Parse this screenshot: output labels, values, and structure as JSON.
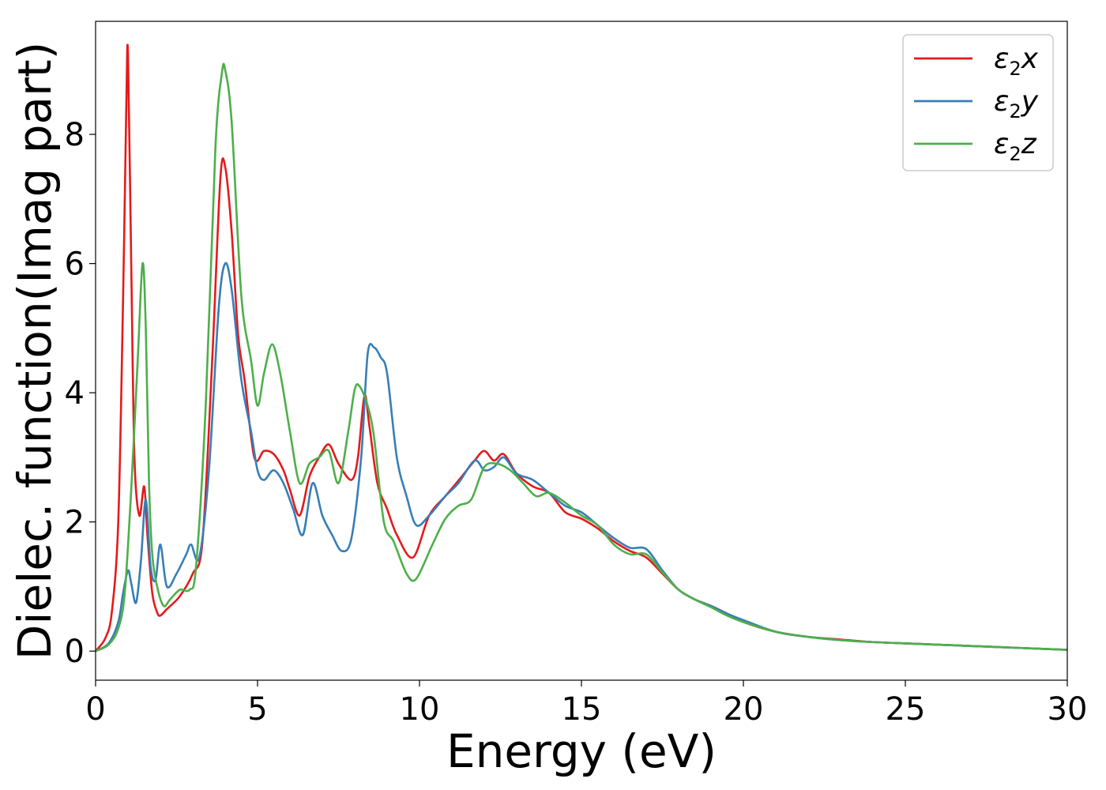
{
  "chart_data": {
    "type": "line",
    "xlabel": "Energy (eV)",
    "ylabel": "Dielec. function(Imag part)",
    "xlim": [
      0,
      30
    ],
    "ylim": [
      -0.45,
      9.75
    ],
    "xticks": [
      0,
      5,
      10,
      15,
      20,
      25,
      30
    ],
    "yticks": [
      0,
      2,
      4,
      6,
      8
    ],
    "grid": false,
    "legend_position": "top-right",
    "series": [
      {
        "name": "ε2x",
        "symbol": "ε",
        "subscript": "2",
        "axis": "x",
        "color": "#e41a1c",
        "x": [
          0,
          0.3,
          0.5,
          0.7,
          0.85,
          0.95,
          1.0,
          1.1,
          1.2,
          1.35,
          1.5,
          1.6,
          1.75,
          1.9,
          2.0,
          2.2,
          2.6,
          3.0,
          3.3,
          3.6,
          3.85,
          4.0,
          4.2,
          4.4,
          4.6,
          4.9,
          5.2,
          5.5,
          5.8,
          6.0,
          6.3,
          6.6,
          6.9,
          7.2,
          7.5,
          7.9,
          8.1,
          8.3,
          8.45,
          8.7,
          9.0,
          9.3,
          9.8,
          10.3,
          10.8,
          11.3,
          11.7,
          12.0,
          12.3,
          12.6,
          13.0,
          13.5,
          14.0,
          14.5,
          15.0,
          15.5,
          16.0,
          16.5,
          17.0,
          17.5,
          18.0,
          18.5,
          19.0,
          19.5,
          20.0,
          21.0,
          22.0,
          23.0,
          24.0,
          25.0,
          26.0,
          27.0,
          28.0,
          29.0,
          30.0
        ],
        "values": [
          0.0,
          0.2,
          0.6,
          2.0,
          5.5,
          8.5,
          9.25,
          6.0,
          3.0,
          2.1,
          2.55,
          1.8,
          0.9,
          0.6,
          0.55,
          0.65,
          0.85,
          1.2,
          1.7,
          4.5,
          7.3,
          7.5,
          6.5,
          4.9,
          4.2,
          3.0,
          3.1,
          3.05,
          2.8,
          2.5,
          2.1,
          2.7,
          3.0,
          3.2,
          2.9,
          2.65,
          3.0,
          3.95,
          3.5,
          2.6,
          2.2,
          1.8,
          1.45,
          2.1,
          2.4,
          2.7,
          2.95,
          3.1,
          2.95,
          3.05,
          2.75,
          2.55,
          2.45,
          2.15,
          2.05,
          1.9,
          1.7,
          1.55,
          1.45,
          1.2,
          0.95,
          0.8,
          0.7,
          0.58,
          0.45,
          0.3,
          0.22,
          0.18,
          0.14,
          0.12,
          0.1,
          0.08,
          0.06,
          0.04,
          0.02
        ]
      },
      {
        "name": "ε2y",
        "symbol": "ε",
        "subscript": "2",
        "axis": "y",
        "color": "#377eb8",
        "x": [
          0,
          0.4,
          0.7,
          0.85,
          1.0,
          1.1,
          1.25,
          1.4,
          1.55,
          1.7,
          1.85,
          2.0,
          2.2,
          2.5,
          2.8,
          2.95,
          3.2,
          3.5,
          3.8,
          4.0,
          4.2,
          4.5,
          4.8,
          5.0,
          5.2,
          5.5,
          5.8,
          6.1,
          6.4,
          6.7,
          7.0,
          7.3,
          7.6,
          7.9,
          8.2,
          8.4,
          8.6,
          8.8,
          9.0,
          9.3,
          9.6,
          9.9,
          10.3,
          10.8,
          11.2,
          11.7,
          12.0,
          12.3,
          12.6,
          13.0,
          13.5,
          14.0,
          14.5,
          15.0,
          15.5,
          16.0,
          16.5,
          17.0,
          17.5,
          18.0,
          18.5,
          19.0,
          19.5,
          20.0,
          21.0,
          22.0,
          23.0,
          24.0,
          25.0,
          26.0,
          27.0,
          28.0,
          29.0,
          30.0
        ],
        "values": [
          0.0,
          0.12,
          0.45,
          0.9,
          1.25,
          1.05,
          0.75,
          1.4,
          2.35,
          1.3,
          1.1,
          1.65,
          1.0,
          1.2,
          1.5,
          1.65,
          1.45,
          2.8,
          5.3,
          6.0,
          5.6,
          4.2,
          3.4,
          2.8,
          2.65,
          2.8,
          2.6,
          2.2,
          1.8,
          2.6,
          2.1,
          1.8,
          1.55,
          1.75,
          3.0,
          4.6,
          4.7,
          4.55,
          4.3,
          3.0,
          2.4,
          1.95,
          2.1,
          2.4,
          2.6,
          2.95,
          2.8,
          2.85,
          3.0,
          2.75,
          2.65,
          2.45,
          2.25,
          2.15,
          1.95,
          1.75,
          1.6,
          1.58,
          1.25,
          0.95,
          0.8,
          0.7,
          0.58,
          0.48,
          0.3,
          0.22,
          0.17,
          0.14,
          0.12,
          0.1,
          0.08,
          0.06,
          0.04,
          0.02
        ]
      },
      {
        "name": "ε2z",
        "symbol": "ε",
        "subscript": "2",
        "axis": "z",
        "color": "#4daf4a",
        "x": [
          0,
          0.4,
          0.7,
          0.9,
          1.1,
          1.3,
          1.45,
          1.55,
          1.65,
          1.75,
          1.9,
          2.1,
          2.3,
          2.6,
          2.9,
          3.1,
          3.4,
          3.7,
          3.9,
          4.0,
          4.2,
          4.5,
          4.8,
          5.0,
          5.2,
          5.45,
          5.7,
          6.0,
          6.3,
          6.6,
          6.9,
          7.2,
          7.5,
          7.8,
          8.0,
          8.15,
          8.4,
          8.6,
          8.9,
          9.2,
          9.6,
          9.9,
          10.4,
          10.8,
          11.2,
          11.6,
          12.0,
          12.4,
          12.8,
          13.2,
          13.6,
          14.0,
          14.5,
          15.0,
          15.5,
          16.0,
          16.5,
          17.0,
          17.5,
          18.0,
          18.5,
          19.0,
          19.5,
          20.0,
          21.0,
          22.0,
          23.0,
          24.0,
          25.0,
          26.0,
          27.0,
          28.0,
          29.0,
          30.0
        ],
        "values": [
          0.0,
          0.1,
          0.35,
          0.9,
          2.5,
          4.5,
          6.0,
          5.0,
          2.6,
          1.5,
          1.0,
          0.7,
          0.8,
          0.95,
          0.95,
          1.3,
          3.8,
          7.8,
          8.95,
          9.0,
          8.2,
          5.5,
          4.5,
          3.8,
          4.3,
          4.75,
          4.3,
          3.4,
          2.6,
          2.9,
          3.0,
          3.1,
          2.6,
          3.4,
          4.05,
          4.1,
          3.8,
          3.3,
          2.0,
          1.7,
          1.2,
          1.12,
          1.65,
          2.05,
          2.25,
          2.35,
          2.85,
          2.9,
          2.8,
          2.6,
          2.4,
          2.45,
          2.3,
          2.1,
          1.95,
          1.65,
          1.5,
          1.5,
          1.22,
          0.95,
          0.8,
          0.68,
          0.55,
          0.45,
          0.3,
          0.22,
          0.17,
          0.14,
          0.12,
          0.1,
          0.08,
          0.06,
          0.04,
          0.02
        ]
      }
    ]
  }
}
